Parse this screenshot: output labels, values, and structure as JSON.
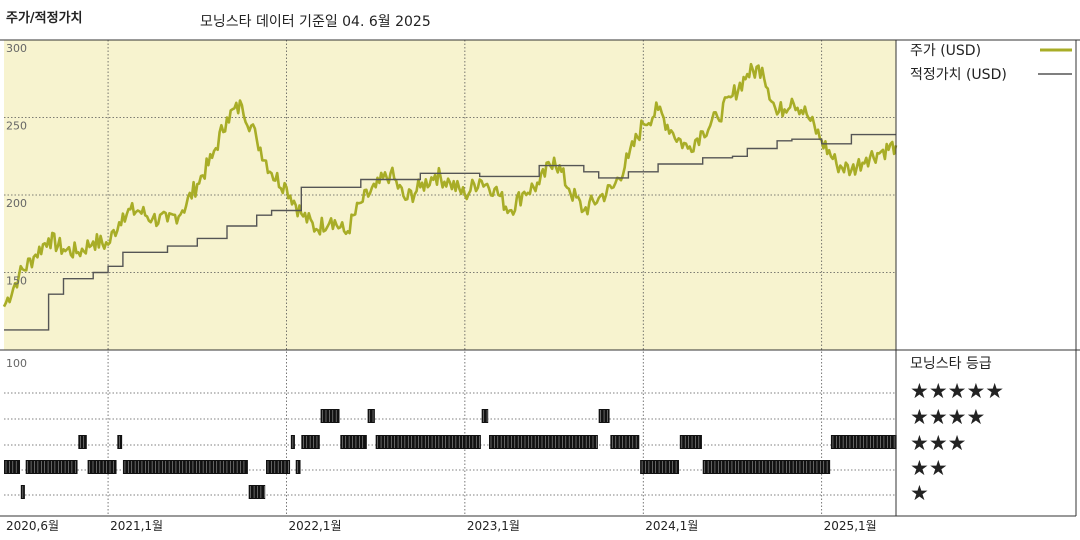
{
  "header": {
    "title": "주가/적정가치",
    "subtitle": "모닝스타 데이터 기준일 04. 6월 2025"
  },
  "colors": {
    "price": "#a8ad27",
    "fair_value": "#555555",
    "plot_bg": "#f7f3cf",
    "rating_bar": "#111111"
  },
  "chart_data": [
    {
      "type": "line",
      "title": "",
      "ylabel": "",
      "ylim": [
        100,
        300
      ],
      "yticks": [
        "100",
        "150",
        "200",
        "250",
        "300"
      ],
      "x_start": "2020-06",
      "x_end": "2025-06",
      "xtick_labels": [
        "2020,6월",
        "2021,1월",
        "2022,1월",
        "2023,1월",
        "2024,1월",
        "2025,1월"
      ],
      "xtick_dates": [
        "2020-06",
        "2021-01",
        "2022-01",
        "2023-01",
        "2024-01",
        "2025-01"
      ],
      "legend_position": "right",
      "series": [
        {
          "name": "주가 (USD)",
          "style": "price",
          "x": [
            "2020-06",
            "2020-07",
            "2020-08",
            "2020-09",
            "2020-10",
            "2020-11",
            "2020-12",
            "2021-01",
            "2021-02",
            "2021-03",
            "2021-04",
            "2021-05",
            "2021-06",
            "2021-07",
            "2021-08",
            "2021-09",
            "2021-10",
            "2021-11",
            "2021-12",
            "2022-01",
            "2022-02",
            "2022-03",
            "2022-04",
            "2022-05",
            "2022-06",
            "2022-07",
            "2022-08",
            "2022-09",
            "2022-10",
            "2022-11",
            "2022-12",
            "2023-01",
            "2023-02",
            "2023-03",
            "2023-04",
            "2023-05",
            "2023-06",
            "2023-07",
            "2023-08",
            "2023-09",
            "2023-10",
            "2023-11",
            "2023-12",
            "2024-01",
            "2024-02",
            "2024-03",
            "2024-04",
            "2024-05",
            "2024-06",
            "2024-07",
            "2024-08",
            "2024-09",
            "2024-10",
            "2024-11",
            "2024-12",
            "2025-01",
            "2025-02",
            "2025-03",
            "2025-04",
            "2025-05",
            "2025-06"
          ],
          "values": [
            128,
            148,
            160,
            172,
            165,
            163,
            170,
            168,
            188,
            190,
            185,
            183,
            190,
            207,
            224,
            250,
            258,
            236,
            214,
            205,
            188,
            178,
            185,
            175,
            195,
            205,
            214,
            197,
            205,
            213,
            208,
            200,
            210,
            204,
            190,
            202,
            207,
            224,
            204,
            190,
            198,
            205,
            224,
            246,
            255,
            240,
            230,
            241,
            250,
            264,
            278,
            282,
            252,
            262,
            252,
            235,
            220,
            216,
            224,
            228,
            232
          ]
        },
        {
          "name": "적정가치 (USD)",
          "style": "fair",
          "x": [
            "2020-06",
            "2020-08",
            "2020-09",
            "2020-10",
            "2020-12",
            "2021-01",
            "2021-02",
            "2021-05",
            "2021-07",
            "2021-09",
            "2021-11",
            "2021-12",
            "2022-02",
            "2022-06",
            "2022-10",
            "2023-02",
            "2023-06",
            "2023-09",
            "2023-10",
            "2023-12",
            "2024-02",
            "2024-05",
            "2024-07",
            "2024-08",
            "2024-10",
            "2024-11",
            "2025-01",
            "2025-03",
            "2025-06"
          ],
          "values": [
            113,
            113,
            136,
            146,
            150,
            154,
            163,
            167,
            172,
            180,
            187,
            190,
            205,
            210,
            214,
            212,
            219,
            215,
            211,
            215,
            220,
            224,
            225,
            230,
            235,
            236,
            233,
            239,
            239
          ]
        }
      ]
    },
    {
      "type": "rating_timeline",
      "title": "모닝스타 등급",
      "yticks": [
        "100"
      ],
      "levels": [
        "★★★★★",
        "★★★★",
        "★★★",
        "★★",
        "★"
      ],
      "segments": [
        {
          "start": "2020-06-01",
          "end": "2020-07-05",
          "stars": 2
        },
        {
          "start": "2020-07-05",
          "end": "2020-07-15",
          "stars": 1
        },
        {
          "start": "2020-07-15",
          "end": "2020-11-01",
          "stars": 2
        },
        {
          "start": "2020-11-01",
          "end": "2020-11-20",
          "stars": 3
        },
        {
          "start": "2020-11-20",
          "end": "2021-01-20",
          "stars": 2
        },
        {
          "start": "2021-01-20",
          "end": "2021-02-01",
          "stars": 3
        },
        {
          "start": "2021-02-01",
          "end": "2021-10-15",
          "stars": 2
        },
        {
          "start": "2021-10-15",
          "end": "2021-11-20",
          "stars": 1
        },
        {
          "start": "2021-11-20",
          "end": "2022-01-10",
          "stars": 2
        },
        {
          "start": "2022-01-10",
          "end": "2022-01-20",
          "stars": 3
        },
        {
          "start": "2022-01-20",
          "end": "2022-02-01",
          "stars": 2
        },
        {
          "start": "2022-02-01",
          "end": "2022-03-10",
          "stars": 3
        },
        {
          "start": "2022-03-10",
          "end": "2022-04-20",
          "stars": 4
        },
        {
          "start": "2022-04-20",
          "end": "2022-06-15",
          "stars": 3
        },
        {
          "start": "2022-06-15",
          "end": "2022-07-01",
          "stars": 4
        },
        {
          "start": "2022-07-01",
          "end": "2023-02-05",
          "stars": 3
        },
        {
          "start": "2023-02-05",
          "end": "2023-02-20",
          "stars": 4
        },
        {
          "start": "2023-02-20",
          "end": "2023-10-01",
          "stars": 3
        },
        {
          "start": "2023-10-01",
          "end": "2023-10-25",
          "stars": 4
        },
        {
          "start": "2023-10-25",
          "end": "2023-12-25",
          "stars": 3
        },
        {
          "start": "2023-12-25",
          "end": "2024-03-15",
          "stars": 2
        },
        {
          "start": "2024-03-15",
          "end": "2024-05-01",
          "stars": 3
        },
        {
          "start": "2024-05-01",
          "end": "2025-01-20",
          "stars": 2
        },
        {
          "start": "2025-01-20",
          "end": "2025-06-04",
          "stars": 3
        }
      ]
    }
  ]
}
